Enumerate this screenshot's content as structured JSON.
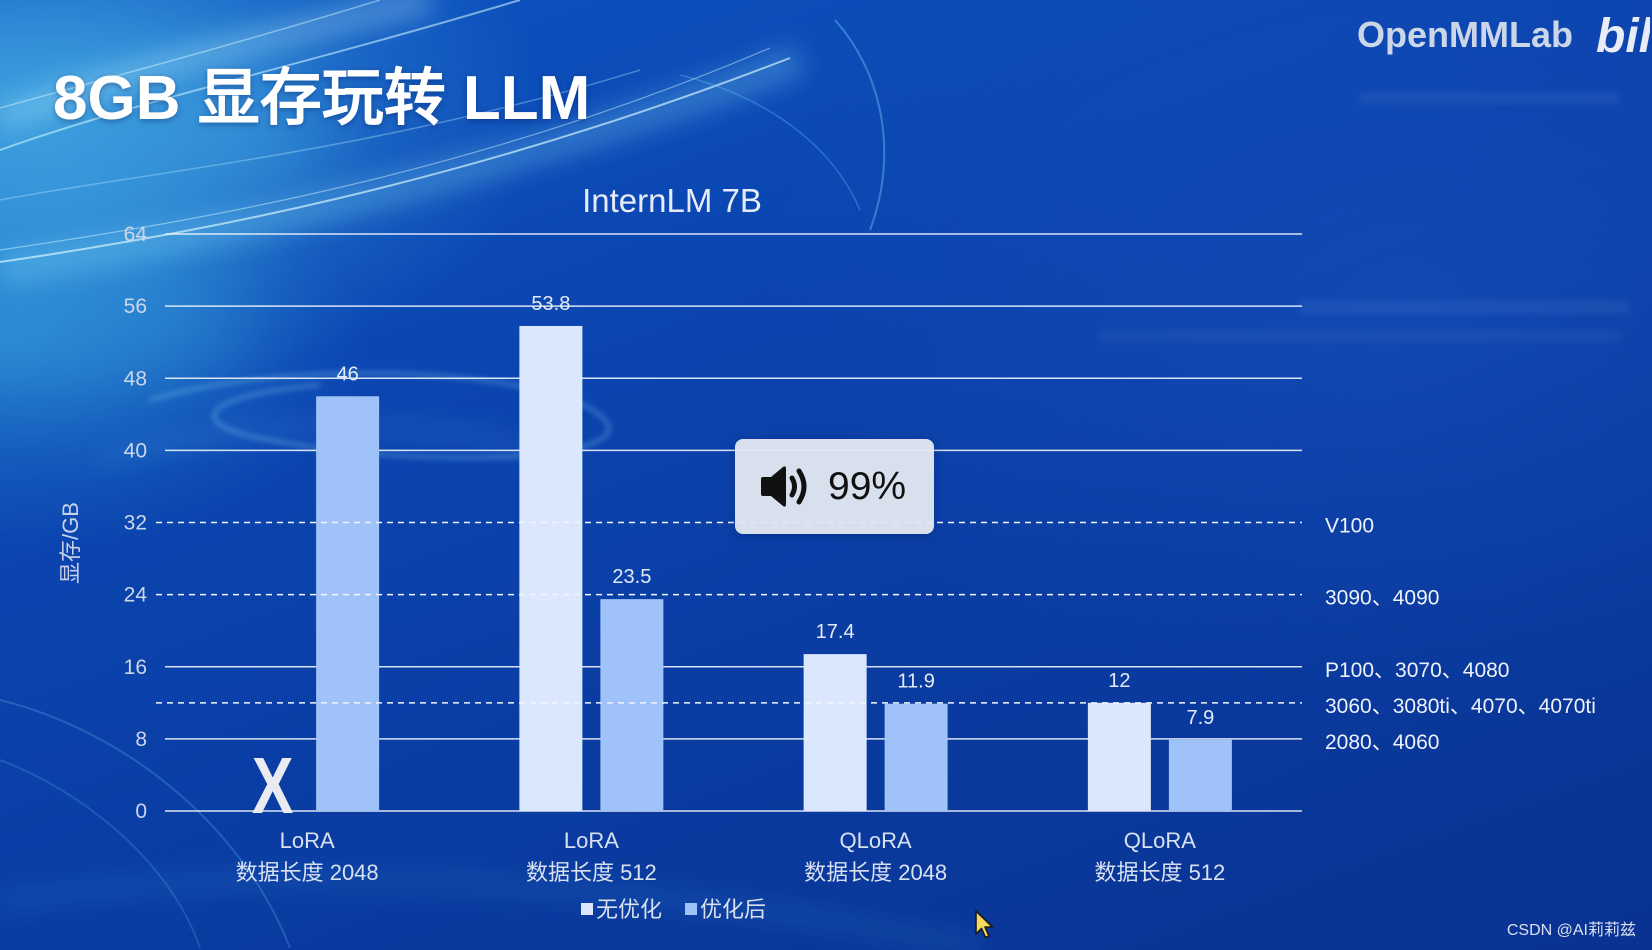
{
  "slide": {
    "title": "8GB 显存玩转 LLM",
    "brand": "OpenMMLab",
    "logo_text": "bili"
  },
  "volume_overlay": {
    "icon": "speaker-icon",
    "level_text": "99%"
  },
  "cursor_icon": "mouse-pointer-icon",
  "watermark": "CSDN @AI莉莉兹",
  "chart_data": {
    "type": "bar",
    "title": "InternLM 7B",
    "xlabel": "",
    "ylabel": "显存/GB",
    "ylim": [
      0,
      64
    ],
    "yticks": [
      0,
      8,
      16,
      24,
      32,
      40,
      48,
      56,
      64
    ],
    "grid": true,
    "categories": [
      {
        "method": "LoRA",
        "label": "数据长度 2048"
      },
      {
        "method": "LoRA",
        "label": "数据长度 512"
      },
      {
        "method": "QLoRA",
        "label": "数据长度 2048"
      },
      {
        "method": "QLoRA",
        "label": "数据长度 512"
      }
    ],
    "series": [
      {
        "name": "无优化",
        "values": [
          null,
          53.8,
          17.4,
          12
        ],
        "color": "#dbe7fc"
      },
      {
        "name": "优化后",
        "values": [
          46,
          23.5,
          11.9,
          7.9
        ],
        "color": "#9fc2f8"
      }
    ],
    "missing_marker": "X",
    "reference_lines": [
      {
        "value": 32,
        "label": "V100",
        "style": "dashed"
      },
      {
        "value": 24,
        "label": "3090、4090",
        "style": "dashed"
      },
      {
        "value": 16,
        "label": "P100、3070、4080",
        "style": "solid"
      },
      {
        "value": 12,
        "label": "3060、3080ti、4070、4070ti",
        "style": "dashed"
      },
      {
        "value": 8,
        "label": "2080、4060",
        "style": "solid"
      }
    ],
    "legend": {
      "placement": "bottom"
    },
    "data_labels": true
  }
}
